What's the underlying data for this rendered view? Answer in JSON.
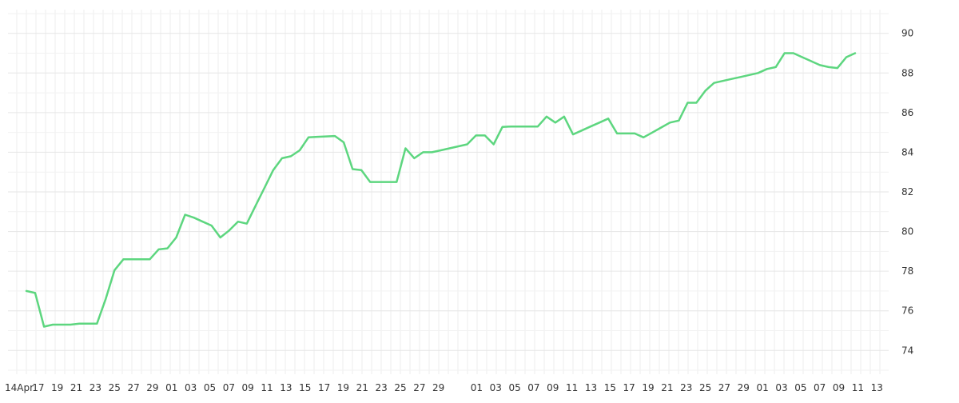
{
  "chart_data": {
    "type": "line",
    "title": "",
    "xlabel": "",
    "ylabel": "",
    "ylim": [
      72.8,
      91.2
    ],
    "y_ticks": [
      74,
      76,
      78,
      80,
      82,
      84,
      86,
      88,
      90
    ],
    "y_axis_position": "right",
    "grid": true,
    "x_tick_labels": [
      "14Apr",
      "17",
      "19",
      "21",
      "23",
      "25",
      "27",
      "29",
      "01",
      "03",
      "05",
      "07",
      "09",
      "11",
      "13",
      "15",
      "17",
      "19",
      "21",
      "23",
      "25",
      "27",
      "29",
      "",
      "01",
      "03",
      "05",
      "07",
      "09",
      "11",
      "13",
      "15",
      "17",
      "19",
      "21",
      "23",
      "25",
      "27",
      "29",
      "01",
      "03",
      "05",
      "07",
      "09",
      "11",
      "13"
    ],
    "colors": {
      "line": "#5dd67f",
      "grid": "#eeeeee",
      "text": "#333333"
    },
    "series": [
      {
        "values": [
          77.0,
          76.9,
          75.2,
          75.3,
          75.3,
          75.3,
          75.35,
          75.35,
          75.35,
          76.6,
          78.05,
          78.6,
          78.6,
          78.6,
          78.6,
          79.1,
          79.15,
          79.7,
          80.85,
          80.7,
          80.5,
          80.3,
          79.7,
          80.05,
          80.5,
          80.4,
          81.3,
          82.2,
          83.1,
          83.7,
          83.8,
          84.1,
          84.75,
          84.78,
          84.8,
          84.82,
          84.5,
          83.15,
          83.1,
          82.5,
          82.5,
          82.5,
          82.5,
          84.2,
          83.7,
          84.0,
          84.0,
          84.1,
          84.2,
          84.3,
          84.4,
          84.85,
          84.85,
          84.4,
          85.28,
          85.3,
          85.3,
          85.3,
          85.3,
          85.8,
          85.5,
          85.8,
          84.9,
          85.1,
          85.3,
          85.5,
          85.7,
          84.95,
          84.95,
          84.95,
          84.75,
          85.0,
          85.25,
          85.5,
          85.6,
          86.5,
          86.5,
          87.1,
          87.5,
          87.6,
          87.7,
          87.8,
          87.9,
          88.0,
          88.2,
          88.3,
          89.0,
          89.0,
          88.8,
          88.6,
          88.4,
          88.3,
          88.25,
          88.8,
          89.0
        ]
      }
    ]
  }
}
